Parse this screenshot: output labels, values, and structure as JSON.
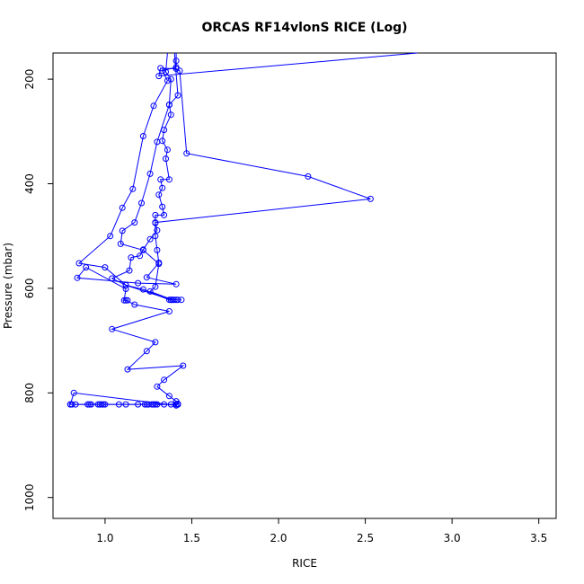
{
  "chart_data": {
    "type": "line",
    "title": "ORCAS RF14vlonS RICE (Log)",
    "xlabel": "RICE",
    "ylabel": "Pressure (mbar)",
    "xlim": [
      0.7,
      3.6
    ],
    "ylim": [
      1040,
      150
    ],
    "y_reversed": true,
    "grid": false,
    "x_ticks": [
      "1.0",
      "1.5",
      "2.0",
      "2.5",
      "3.0",
      "3.5"
    ],
    "x_tick_values": [
      1.0,
      1.5,
      2.0,
      2.5,
      3.0,
      3.5
    ],
    "y_ticks": [
      "200",
      "400",
      "600",
      "800",
      "1000"
    ],
    "y_tick_values": [
      200,
      400,
      600,
      800,
      1000
    ],
    "color": "#0000ff",
    "marker": "open-circle",
    "series": [
      {
        "points": [
          [
            1.36,
            150
          ],
          [
            1.35,
            186
          ],
          [
            1.38,
            200
          ],
          [
            1.37,
            249
          ],
          [
            1.38,
            268
          ],
          [
            1.34,
            297
          ],
          [
            1.33,
            318
          ],
          [
            1.36,
            335
          ],
          [
            1.35,
            352
          ],
          [
            1.37,
            392
          ],
          [
            1.32,
            392
          ],
          [
            1.33,
            408
          ],
          [
            1.31,
            421
          ],
          [
            1.33,
            444
          ],
          [
            1.34,
            460
          ],
          [
            1.29,
            460
          ],
          [
            1.29,
            475
          ],
          [
            1.3,
            489
          ],
          [
            1.26,
            506
          ],
          [
            1.22,
            526
          ],
          [
            1.2,
            538
          ],
          [
            1.15,
            541
          ],
          [
            1.14,
            566
          ],
          [
            1.04,
            581
          ],
          [
            1.12,
            594
          ],
          [
            1.22,
            602
          ],
          [
            1.37,
            622
          ],
          [
            1.38,
            622
          ],
          [
            1.39,
            622
          ],
          [
            1.4,
            622
          ],
          [
            1.42,
            622
          ],
          [
            1.44,
            622
          ]
        ]
      },
      {
        "points": [
          [
            1.41,
            150
          ],
          [
            1.41,
            165
          ],
          [
            1.41,
            177
          ],
          [
            1.33,
            184
          ],
          [
            1.36,
            203
          ],
          [
            1.28,
            251
          ],
          [
            1.22,
            309
          ],
          [
            1.16,
            410
          ],
          [
            1.1,
            446
          ],
          [
            1.03,
            500
          ],
          [
            0.85,
            552
          ],
          [
            1.0,
            560
          ],
          [
            1.12,
            594
          ],
          [
            1.38,
            622
          ]
        ]
      },
      {
        "points": [
          [
            1.4,
            150
          ],
          [
            1.42,
            231
          ],
          [
            1.37,
            249
          ],
          [
            1.3,
            320
          ],
          [
            1.26,
            381
          ],
          [
            1.21,
            437
          ],
          [
            1.17,
            474
          ],
          [
            1.1,
            490
          ],
          [
            1.09,
            515
          ],
          [
            1.22,
            527
          ],
          [
            1.31,
            553
          ],
          [
            1.29,
            597
          ],
          [
            1.26,
            606
          ],
          [
            1.39,
            622
          ],
          [
            1.41,
            622
          ]
        ]
      },
      {
        "points": [
          [
            2.8,
            150
          ],
          [
            1.31,
            194
          ],
          [
            1.32,
            179
          ],
          [
            1.41,
            180
          ],
          [
            1.43,
            184
          ],
          [
            1.47,
            342
          ],
          [
            2.17,
            386
          ],
          [
            2.53,
            429
          ],
          [
            1.29,
            474
          ],
          [
            1.29,
            500
          ],
          [
            1.3,
            527
          ],
          [
            1.31,
            551
          ],
          [
            1.24,
            579
          ],
          [
            1.41,
            592
          ],
          [
            1.19,
            590
          ],
          [
            0.84,
            580
          ],
          [
            0.89,
            560
          ],
          [
            1.12,
            601
          ],
          [
            1.11,
            623
          ],
          [
            1.13,
            623
          ],
          [
            1.12,
            623
          ],
          [
            1.17,
            631
          ],
          [
            1.37,
            644
          ],
          [
            1.04,
            678
          ],
          [
            1.29,
            703
          ],
          [
            1.24,
            720
          ],
          [
            1.13,
            755
          ],
          [
            1.45,
            748
          ],
          [
            1.34,
            775
          ],
          [
            1.3,
            788
          ],
          [
            1.37,
            806
          ],
          [
            1.41,
            816
          ],
          [
            1.42,
            821
          ],
          [
            1.41,
            824
          ],
          [
            0.82,
            800
          ],
          [
            0.8,
            822
          ],
          [
            1.42,
            822
          ]
        ]
      },
      {
        "points": [
          [
            0.8,
            822
          ],
          [
            0.81,
            822
          ],
          [
            0.83,
            822
          ],
          [
            0.9,
            822
          ],
          [
            0.91,
            822
          ],
          [
            0.92,
            822
          ],
          [
            0.96,
            822
          ],
          [
            0.97,
            822
          ],
          [
            0.98,
            822
          ],
          [
            0.99,
            822
          ],
          [
            1.0,
            822
          ],
          [
            1.08,
            822
          ],
          [
            1.12,
            822
          ],
          [
            1.19,
            822
          ],
          [
            1.23,
            822
          ],
          [
            1.24,
            822
          ],
          [
            1.25,
            822
          ],
          [
            1.27,
            822
          ],
          [
            1.28,
            822
          ],
          [
            1.29,
            822
          ],
          [
            1.3,
            822
          ],
          [
            1.34,
            822
          ],
          [
            1.38,
            822
          ],
          [
            1.41,
            822
          ],
          [
            1.42,
            822
          ]
        ]
      }
    ]
  }
}
